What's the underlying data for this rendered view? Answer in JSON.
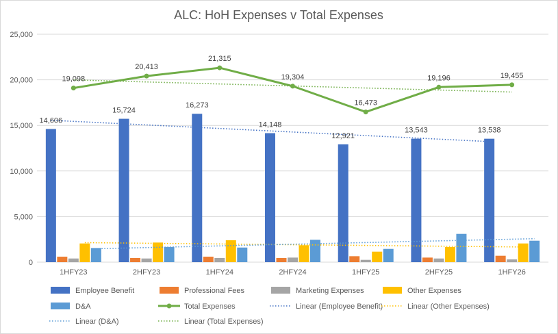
{
  "chart_data": {
    "type": "bar",
    "title": "ALC: HoH Expenses v Total Expenses",
    "categories": [
      "1HFY23",
      "2HFY23",
      "1HFY24",
      "2HFY24",
      "1HFY25",
      "2HFY25",
      "1HFY26"
    ],
    "ylim": [
      0,
      25000
    ],
    "yticks": [
      "0",
      "5,000",
      "10,000",
      "15,000",
      "20,000",
      "25,000"
    ],
    "ytick_values": [
      0,
      5000,
      10000,
      15000,
      20000,
      25000
    ],
    "grid": true,
    "legend_position": "bottom",
    "series": [
      {
        "name": "Employee Benefit",
        "kind": "bar",
        "color": "#4472c4",
        "values": [
          14606,
          15724,
          16273,
          14148,
          12921,
          13543,
          13538
        ],
        "labels": [
          "14,606",
          "15,724",
          "16,273",
          "14,148",
          "12,921",
          "13,543",
          "13,538"
        ]
      },
      {
        "name": "Professional Fees",
        "kind": "bar",
        "color": "#ed7d31",
        "values": [
          600,
          450,
          600,
          450,
          650,
          500,
          700
        ]
      },
      {
        "name": "Marketing Expenses",
        "kind": "bar",
        "color": "#a5a5a5",
        "values": [
          400,
          400,
          450,
          500,
          250,
          400,
          300
        ]
      },
      {
        "name": "Other Expenses",
        "kind": "bar",
        "color": "#ffc000",
        "values": [
          2050,
          2150,
          2400,
          1850,
          1150,
          1650,
          2050
        ]
      },
      {
        "name": "D&A",
        "kind": "bar",
        "color": "#5b9bd5",
        "values": [
          1550,
          1650,
          1600,
          2450,
          1450,
          3100,
          2350
        ]
      },
      {
        "name": "Total Expenses",
        "kind": "line",
        "color": "#70ad47",
        "values": [
          19098,
          20413,
          21315,
          19304,
          16473,
          19196,
          19455
        ],
        "labels": [
          "19,098",
          "20,413",
          "21,315",
          "19,304",
          "16,473",
          "19,196",
          "19,455"
        ]
      }
    ],
    "trendlines": [
      {
        "name": "Linear (Employee Benefit)",
        "of": "Employee Benefit",
        "color": "#4472c4"
      },
      {
        "name": "Linear (Other Expenses)",
        "of": "Other Expenses",
        "color": "#ffc000"
      },
      {
        "name": "Linear (D&A)",
        "of": "D&A",
        "color": "#5b9bd5"
      },
      {
        "name": "Linear (Total Expenses)",
        "of": "Total Expenses",
        "color": "#70ad47"
      }
    ],
    "legend_items": [
      {
        "label": "Employee Benefit",
        "marker": "bar",
        "color": "#4472c4"
      },
      {
        "label": "Professional Fees",
        "marker": "bar",
        "color": "#ed7d31"
      },
      {
        "label": "Marketing Expenses",
        "marker": "bar",
        "color": "#a5a5a5"
      },
      {
        "label": "Other Expenses",
        "marker": "bar",
        "color": "#ffc000"
      },
      {
        "label": "D&A",
        "marker": "bar",
        "color": "#5b9bd5"
      },
      {
        "label": "Total Expenses",
        "marker": "line",
        "color": "#70ad47"
      },
      {
        "label": "Linear (Employee Benefit)",
        "marker": "dotted",
        "color": "#4472c4"
      },
      {
        "label": "Linear (Other Expenses)",
        "marker": "dotted",
        "color": "#ffc000"
      },
      {
        "label": "Linear (D&A)",
        "marker": "dotted",
        "color": "#5b9bd5"
      },
      {
        "label": "Linear (Total Expenses)",
        "marker": "dotted",
        "color": "#70ad47"
      }
    ]
  }
}
